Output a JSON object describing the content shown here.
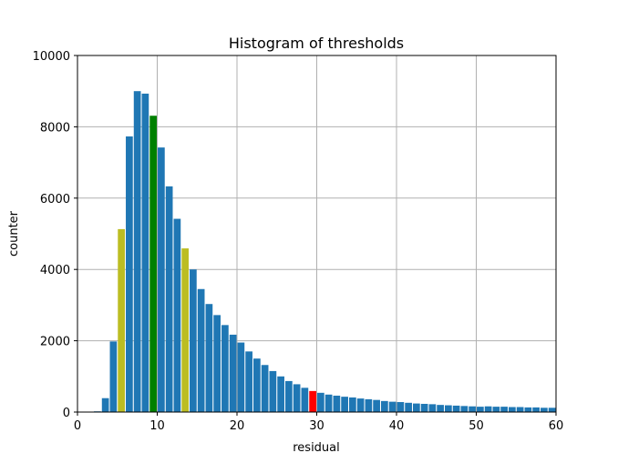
{
  "chart_data": {
    "type": "bar",
    "title": "Histogram of thresholds",
    "xlabel": "residual",
    "ylabel": "counter",
    "xlim": [
      0,
      60
    ],
    "ylim": [
      0,
      10000
    ],
    "grid": true,
    "xticks": [
      "0",
      "10",
      "20",
      "30",
      "40",
      "50",
      "60"
    ],
    "yticks": [
      "0",
      "2000",
      "4000",
      "6000",
      "8000",
      "10000"
    ],
    "bin_width": 1,
    "colors": {
      "default": "#1f77b4",
      "yellow": "#bcbd22",
      "green": "#008000",
      "red": "#ff0000"
    },
    "bins": [
      {
        "x": 2,
        "value": 20
      },
      {
        "x": 3,
        "value": 390
      },
      {
        "x": 4,
        "value": 1980
      },
      {
        "x": 5,
        "value": 5130,
        "color": "yellow"
      },
      {
        "x": 6,
        "value": 7730
      },
      {
        "x": 7,
        "value": 9000
      },
      {
        "x": 8,
        "value": 8930
      },
      {
        "x": 9,
        "value": 8310,
        "color": "green"
      },
      {
        "x": 10,
        "value": 7420
      },
      {
        "x": 11,
        "value": 6330
      },
      {
        "x": 12,
        "value": 5420
      },
      {
        "x": 13,
        "value": 4590,
        "color": "yellow"
      },
      {
        "x": 14,
        "value": 4000
      },
      {
        "x": 15,
        "value": 3450
      },
      {
        "x": 16,
        "value": 3030
      },
      {
        "x": 17,
        "value": 2720
      },
      {
        "x": 18,
        "value": 2440
      },
      {
        "x": 19,
        "value": 2170
      },
      {
        "x": 20,
        "value": 1950
      },
      {
        "x": 21,
        "value": 1700
      },
      {
        "x": 22,
        "value": 1500
      },
      {
        "x": 23,
        "value": 1320
      },
      {
        "x": 24,
        "value": 1150
      },
      {
        "x": 25,
        "value": 1000
      },
      {
        "x": 26,
        "value": 870
      },
      {
        "x": 27,
        "value": 780
      },
      {
        "x": 28,
        "value": 680
      },
      {
        "x": 29,
        "value": 590,
        "color": "red"
      },
      {
        "x": 30,
        "value": 540
      },
      {
        "x": 31,
        "value": 490
      },
      {
        "x": 32,
        "value": 460
      },
      {
        "x": 33,
        "value": 430
      },
      {
        "x": 34,
        "value": 410
      },
      {
        "x": 35,
        "value": 380
      },
      {
        "x": 36,
        "value": 360
      },
      {
        "x": 37,
        "value": 340
      },
      {
        "x": 38,
        "value": 310
      },
      {
        "x": 39,
        "value": 290
      },
      {
        "x": 40,
        "value": 280
      },
      {
        "x": 41,
        "value": 260
      },
      {
        "x": 42,
        "value": 240
      },
      {
        "x": 43,
        "value": 230
      },
      {
        "x": 44,
        "value": 220
      },
      {
        "x": 45,
        "value": 200
      },
      {
        "x": 46,
        "value": 190
      },
      {
        "x": 47,
        "value": 180
      },
      {
        "x": 48,
        "value": 170
      },
      {
        "x": 49,
        "value": 160
      },
      {
        "x": 50,
        "value": 150
      },
      {
        "x": 51,
        "value": 160
      },
      {
        "x": 52,
        "value": 150
      },
      {
        "x": 53,
        "value": 150
      },
      {
        "x": 54,
        "value": 140
      },
      {
        "x": 55,
        "value": 140
      },
      {
        "x": 56,
        "value": 130
      },
      {
        "x": 57,
        "value": 130
      },
      {
        "x": 58,
        "value": 120
      },
      {
        "x": 59,
        "value": 120
      }
    ]
  }
}
